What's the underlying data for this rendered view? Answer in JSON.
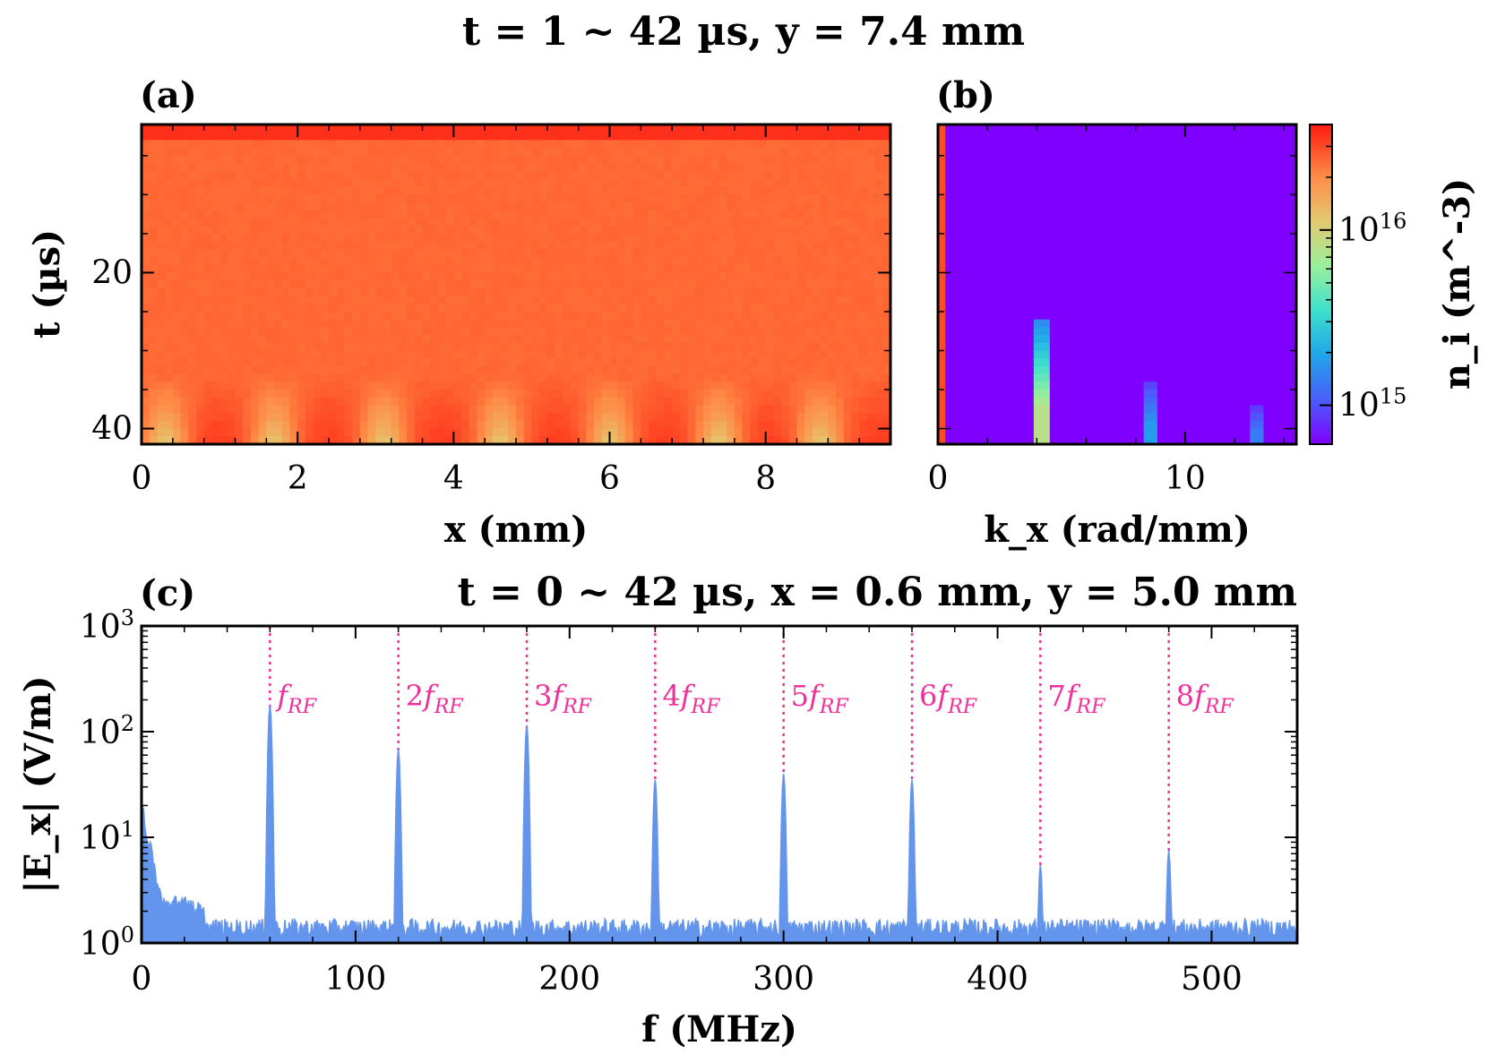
{
  "figure": {
    "title": "t = 1 ~ 42 µs, y = 7.4 mm"
  },
  "chart_data": [
    {
      "panel": "(a)",
      "type": "heatmap",
      "xlabel": "x (mm)",
      "ylabel": "t (µs)",
      "xlim": [
        0,
        9.6
      ],
      "ylim": [
        42,
        1
      ],
      "y_inverted": true,
      "xticks": [
        0,
        2,
        4,
        6,
        8
      ],
      "yticks": [
        20,
        40
      ],
      "colormap": "rainbow",
      "colorscale": "log",
      "stripe_centers_mm": [
        0.3,
        1.7,
        3.1,
        4.6,
        6.0,
        7.4,
        8.7
      ],
      "base_density_m3": 2.5e+16,
      "stripe_density_m3": 1e+16,
      "stripe_onset_us": 33,
      "top_edge_density_m3": 3.5e+16
    },
    {
      "panel": "(b)",
      "type": "heatmap",
      "xlabel": "k_x (rad/mm)",
      "ylabel": "",
      "xlim": [
        0,
        14.5
      ],
      "ylim": [
        42,
        1
      ],
      "y_inverted": true,
      "xticks": [
        0,
        10
      ],
      "colormap": "rainbow",
      "colorscale": "log",
      "background_density_m3": 600000000000000.0,
      "columns": [
        {
          "k_center": 0.15,
          "k_width": 0.3,
          "t_start": 1,
          "t_end": 42,
          "peak_value": 3e+16
        },
        {
          "k_center": 4.2,
          "k_width": 0.65,
          "t_start": 26,
          "t_end": 42,
          "peak_value": 8000000000000000.0
        },
        {
          "k_center": 8.6,
          "k_width": 0.55,
          "t_start": 34,
          "t_end": 42,
          "peak_value": 1800000000000000.0
        },
        {
          "k_center": 12.9,
          "k_width": 0.55,
          "t_start": 37,
          "t_end": 42,
          "peak_value": 1400000000000000.0
        }
      ],
      "colorbar": {
        "label": "n_i (m^-3)",
        "range": [
          600000000000000.0,
          4e+16
        ],
        "ticks": [
          {
            "value": 1000000000000000.0,
            "label": "10^15"
          },
          {
            "value": 1e+16,
            "label": "10^16"
          }
        ]
      }
    },
    {
      "panel": "(c)",
      "type": "line",
      "title": "t = 0 ~ 42 µs, x = 0.6 mm, y = 5.0 mm",
      "xlabel": "f (MHz)",
      "ylabel": "|E_x| (V/m)",
      "xlim": [
        0,
        540
      ],
      "ylim": [
        1,
        1000
      ],
      "yscale": "log",
      "xticks": [
        0,
        100,
        200,
        300,
        400,
        500
      ],
      "yticks": [
        1,
        10,
        100,
        1000
      ],
      "series_color": "#6495ed",
      "noise_floor_V_m": 1.3,
      "low_freq": {
        "x": [
          0,
          2,
          4,
          6,
          8,
          12,
          20,
          30
        ],
        "y": [
          20,
          12,
          8,
          5,
          3,
          2.2,
          2.5,
          1.8
        ]
      },
      "peaks": [
        {
          "x": 60,
          "y": 180,
          "label": "f_RF"
        },
        {
          "x": 120,
          "y": 68,
          "label": "2f_RF"
        },
        {
          "x": 180,
          "y": 115,
          "label": "3f_RF"
        },
        {
          "x": 240,
          "y": 35,
          "label": "4f_RF"
        },
        {
          "x": 300,
          "y": 40,
          "label": "5f_RF"
        },
        {
          "x": 360,
          "y": 35,
          "label": "6f_RF"
        },
        {
          "x": 420,
          "y": 5.5,
          "label": "7f_RF"
        },
        {
          "x": 480,
          "y": 7.5,
          "label": "8f_RF"
        }
      ],
      "harmonic_line_color": "#f0309a"
    }
  ]
}
